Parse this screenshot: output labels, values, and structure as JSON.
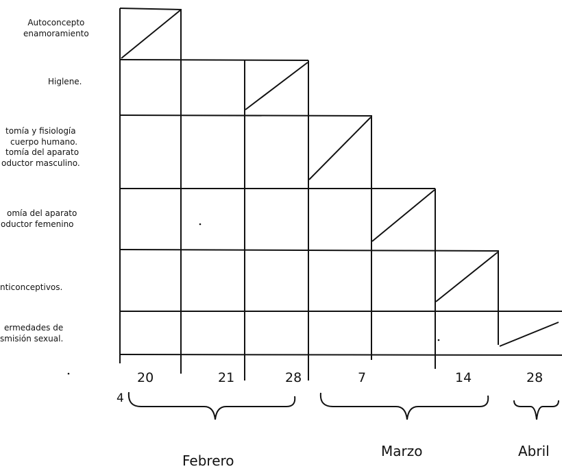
{
  "topics": [
    {
      "lines": [
        "Autoconcepto",
        "enamoramiento"
      ]
    },
    {
      "lines": [
        "Higlene."
      ]
    },
    {
      "lines": [
        "tomía y fisiología",
        "cuerpo humano.",
        "tomía del aparato",
        "oductor masculino."
      ]
    },
    {
      "lines": [
        "omía del aparato",
        "oductor femenino"
      ]
    },
    {
      "lines": [
        "nticonceptivos."
      ]
    },
    {
      "lines": [
        "ermedades de",
        "smisión sexual."
      ]
    }
  ],
  "date_labels": [
    "20",
    "21",
    "28",
    "7",
    "14",
    "28"
  ],
  "stray_label": "4",
  "months": [
    "Febrero",
    "Marzo",
    "Abril"
  ],
  "line_color": "#111111"
}
